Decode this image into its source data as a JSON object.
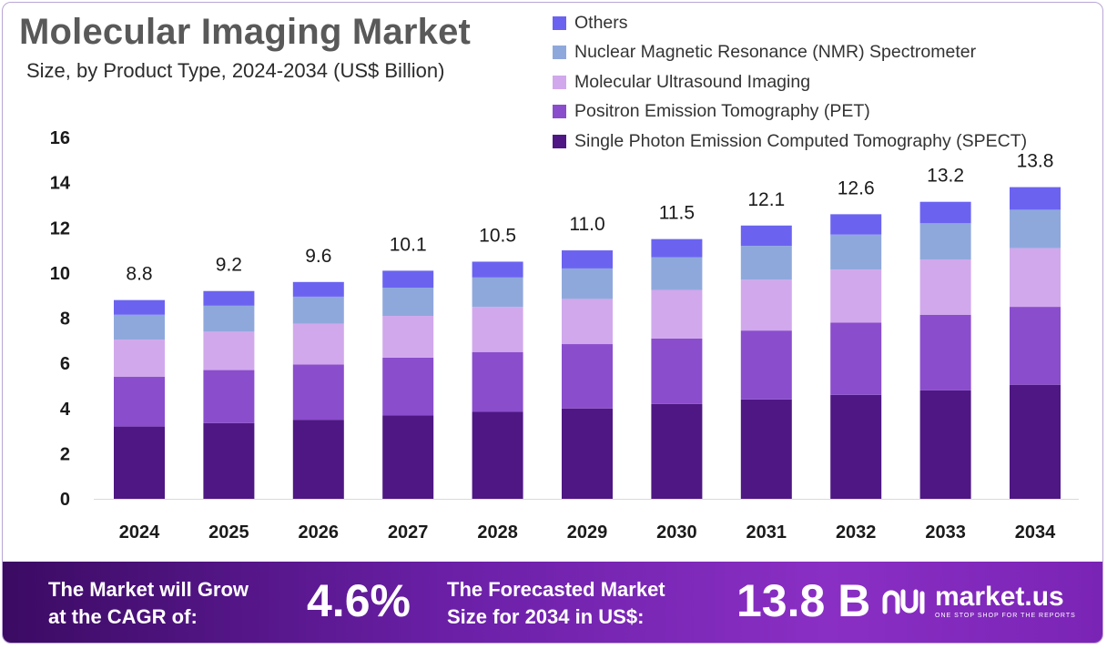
{
  "header": {
    "title": "Molecular Imaging Market",
    "subtitle": "Size, by Product Type, 2024-2034 (US$ Billion)"
  },
  "legend": {
    "items": [
      {
        "label": "Others",
        "color": "#6b63f0"
      },
      {
        "label": "Nuclear Magnetic Resonance (NMR) Spectrometer",
        "color": "#8fa8dc"
      },
      {
        "label": "Molecular Ultrasound Imaging",
        "color": "#d1a8ec"
      },
      {
        "label": "Positron Emission Tomography (PET)",
        "color": "#8a4dcc"
      },
      {
        "label": "Single Photon Emission Computed Tomography (SPECT)",
        "color": "#4e1784"
      }
    ]
  },
  "chart_data": {
    "type": "bar",
    "stacked": true,
    "categories": [
      "2024",
      "2025",
      "2026",
      "2027",
      "2028",
      "2029",
      "2030",
      "2031",
      "2032",
      "2033",
      "2034"
    ],
    "series": [
      {
        "name": "Single Photon Emission Computed Tomography (SPECT)",
        "color": "#4e1784",
        "values": [
          3.2,
          3.35,
          3.5,
          3.7,
          3.85,
          4.0,
          4.2,
          4.4,
          4.6,
          4.8,
          5.05
        ]
      },
      {
        "name": "Positron Emission Tomography (PET)",
        "color": "#8a4dcc",
        "values": [
          2.2,
          2.35,
          2.45,
          2.55,
          2.65,
          2.85,
          2.9,
          3.05,
          3.2,
          3.35,
          3.45
        ]
      },
      {
        "name": "Molecular Ultrasound Imaging",
        "color": "#d1a8ec",
        "values": [
          1.65,
          1.7,
          1.8,
          1.85,
          2.0,
          2.0,
          2.15,
          2.25,
          2.35,
          2.45,
          2.6
        ]
      },
      {
        "name": "Nuclear Magnetic Resonance (NMR) Spectrometer",
        "color": "#8fa8dc",
        "values": [
          1.1,
          1.15,
          1.2,
          1.25,
          1.3,
          1.35,
          1.45,
          1.5,
          1.55,
          1.6,
          1.7
        ]
      },
      {
        "name": "Others",
        "color": "#6b63f0",
        "values": [
          0.65,
          0.65,
          0.65,
          0.75,
          0.7,
          0.8,
          0.8,
          0.9,
          0.9,
          0.95,
          1.0
        ]
      }
    ],
    "totals": [
      "8.8",
      "9.2",
      "9.6",
      "10.1",
      "10.5",
      "11.0",
      "11.5",
      "12.1",
      "12.6",
      "13.2",
      "13.8"
    ],
    "yticks": [
      "0",
      "2",
      "4",
      "6",
      "8",
      "10",
      "12",
      "14",
      "16"
    ],
    "ylim": [
      0,
      16
    ],
    "grid": false,
    "legend_position": "top-right"
  },
  "banner": {
    "cagr_line1": "The Market will Grow",
    "cagr_line2": "at the CAGR of:",
    "cagr_value": "4.6%",
    "forecast_line1": "The Forecasted Market",
    "forecast_line2": "Size for 2034 in US$:",
    "forecast_value": "13.8 B",
    "logo_name": "market.us",
    "logo_tagline": "ONE STOP SHOP FOR THE REPORTS"
  }
}
